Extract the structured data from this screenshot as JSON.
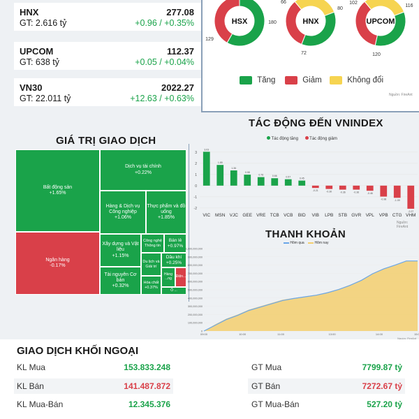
{
  "indices": [
    {
      "name": "HNX",
      "value": "277.08",
      "gt": "GT: 2.616 tỷ",
      "change": "+0.96 / +0.35%"
    },
    {
      "name": "UPCOM",
      "value": "112.37",
      "gt": "GT: 638 tỷ",
      "change": "+0.05 / +0.04%"
    },
    {
      "name": "VN30",
      "value": "2022.27",
      "gt": "GT: 22.011 tỷ",
      "change": "+12.63 / +0.63%"
    }
  ],
  "breadth": {
    "donuts": [
      {
        "label": "HSX",
        "up": 180,
        "down": 129,
        "flat": null,
        "up_label": "180",
        "down_label": "129"
      },
      {
        "label": "HNX",
        "up": 80,
        "down": 72,
        "flat": 66,
        "up_label": "80",
        "down_label": "72",
        "flat_label": "66"
      },
      {
        "label": "UPCOM",
        "up": 116,
        "down": 120,
        "flat": 102,
        "up_label": "116",
        "down_label": "120",
        "flat_label": "102"
      }
    ],
    "legend": [
      {
        "label": "Tăng",
        "color": "#1aa34a"
      },
      {
        "label": "Giảm",
        "color": "#d94049"
      },
      {
        "label": "Không đổi",
        "color": "#f6d451"
      }
    ],
    "source": "Nguồn: FireAnt"
  },
  "treemap": {
    "title": "GIÁ TRỊ GIAO DỊCH",
    "tiles": [
      {
        "name": "Bất động sản",
        "change": "+1.65%",
        "color": "#1aa34a"
      },
      {
        "name": "Ngân hàng",
        "change": "-0.17%",
        "color": "#d94049"
      },
      {
        "name": "Dịch vụ tài chính",
        "change": "+0.22%",
        "color": "#1aa34a"
      },
      {
        "name": "Hàng & Dịch vụ Công nghiệp",
        "change": "+1.06%",
        "color": "#1aa34a"
      },
      {
        "name": "Thực phẩm và đồ uống",
        "change": "+1.85%",
        "color": "#1aa34a"
      },
      {
        "name": "Xây dựng và Vật liệu",
        "change": "+1.15%",
        "color": "#1aa34a"
      },
      {
        "name": "Công nghệ Thông tin",
        "change": "",
        "color": "#1aa34a"
      },
      {
        "name": "Bán lẻ",
        "change": "+0.97%",
        "color": "#1aa34a"
      },
      {
        "name": "Du lịch và Giải trí",
        "change": "",
        "color": "#1aa34a"
      },
      {
        "name": "Dầu khí",
        "change": "+0.25%",
        "color": "#1aa34a"
      },
      {
        "name": "Tài nguyên Cơ bản",
        "change": "+0.32%",
        "color": "#1aa34a"
      },
      {
        "name": "Hóa chất",
        "change": "+0.37%",
        "color": "#1aa34a"
      },
      {
        "name": "Hàng ...ng",
        "change": "",
        "color": "#1aa34a"
      },
      {
        "name": "Điện...",
        "change": "",
        "color": "#d94049"
      },
      {
        "name": "Ô ...",
        "change": "",
        "color": "#1aa34a"
      }
    ]
  },
  "chart_data": [
    {
      "type": "bar",
      "title": "TÁC ĐỘNG ĐẾN VNINDEX",
      "legend": [
        "Tác động tăng",
        "Tác động giảm"
      ],
      "colors": {
        "up": "#1aa34a",
        "down": "#d94049"
      },
      "categories": [
        "VIC",
        "MSN",
        "VJC",
        "GEE",
        "VRE",
        "TCB",
        "VCB",
        "BID",
        "VIB",
        "LPB",
        "STB",
        "GVR",
        "VPL",
        "VPB",
        "CTG",
        "VHM"
      ],
      "values": [
        3.03,
        1.85,
        1.36,
        0.98,
        0.76,
        0.66,
        0.57,
        0.45,
        -0.21,
        -0.3,
        -0.36,
        -0.36,
        -0.46,
        -0.98,
        -1.09,
        -2.07
      ],
      "value_labels": [
        "3.03",
        "1.85",
        "1.36",
        "0.98",
        "0.76",
        "0.66",
        "0.57",
        "0.45",
        "-0.21",
        "-0.30",
        "-0.36",
        "-0.36",
        "-0.46",
        "-0.98",
        "-1.09",
        "-2.07"
      ],
      "yticks": [
        "3",
        "2",
        "1",
        "0",
        "-1",
        "-2"
      ],
      "ylim": [
        -2.2,
        3.3
      ],
      "source": "Nguồn: FireAnt"
    },
    {
      "type": "area",
      "title": "THANH KHOẢN",
      "legend": [
        "Hôm qua",
        "Hôm nay"
      ],
      "colors": {
        "yesterday": "#6aa6e8",
        "today": "#f3cf6e"
      },
      "x": [
        "09:00",
        "10:00",
        "11:00",
        "13:00",
        "14:00",
        "15:00"
      ],
      "yticks": [
        "1,000,000,000",
        "900,000,000",
        "800,000,000",
        "700,000,000",
        "600,000,000",
        "500,000,000",
        "400,000,000",
        "300,000,000",
        "200,000,000",
        "100,000,000",
        "0"
      ],
      "ylim": [
        0,
        1000000000
      ],
      "today": [
        0,
        80000000,
        150000000,
        200000000,
        260000000,
        300000000,
        340000000,
        380000000,
        400000000,
        420000000,
        440000000,
        470000000,
        510000000,
        560000000,
        620000000,
        700000000,
        760000000,
        800000000,
        850000000,
        850000000
      ],
      "yesterday": [
        0,
        70000000,
        140000000,
        190000000,
        250000000,
        290000000,
        330000000,
        370000000,
        395000000,
        415000000,
        435000000,
        465000000,
        505000000,
        555000000,
        615000000,
        695000000,
        755000000,
        800000000,
        850000000,
        850000000
      ],
      "source": "Nguồn: FireAnt"
    }
  ],
  "foreign": {
    "title": "GIAO DỊCH KHỐI NGOẠI",
    "left": [
      {
        "label": "KL Mua",
        "value": "153.833.248",
        "color": "#1aa34a"
      },
      {
        "label": "KL Bán",
        "value": "141.487.872",
        "color": "#d94049"
      },
      {
        "label": "KL Mua-Bán",
        "value": "12.345.376",
        "color": "#1aa34a"
      }
    ],
    "right": [
      {
        "label": "GT Mua",
        "value": "7799.87 tỷ",
        "color": "#1aa34a"
      },
      {
        "label": "GT Bán",
        "value": "7272.67 tỷ",
        "color": "#d94049"
      },
      {
        "label": "GT Mua-Bán",
        "value": "527.20 tỷ",
        "color": "#1aa34a"
      }
    ]
  }
}
